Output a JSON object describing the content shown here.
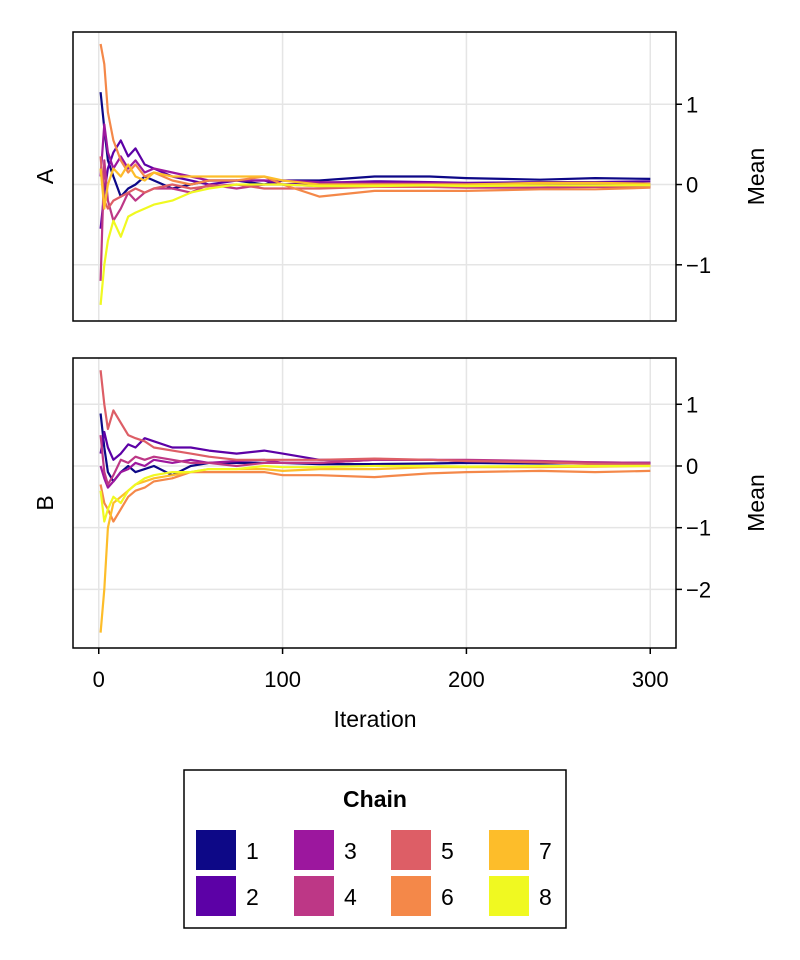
{
  "chart_data": {
    "type": "line",
    "xlabel": "Iteration",
    "xlim": [
      -14,
      314
    ],
    "xticks": [
      0,
      100,
      200,
      300
    ],
    "grid": true,
    "legend": {
      "title": "Chain",
      "position": "bottom-center",
      "entries": [
        {
          "label": "1",
          "color": "#0d0887"
        },
        {
          "label": "2",
          "color": "#5c01a6"
        },
        {
          "label": "3",
          "color": "#9c179e"
        },
        {
          "label": "4",
          "color": "#bd3786"
        },
        {
          "label": "5",
          "color": "#dd5e66"
        },
        {
          "label": "6",
          "color": "#f48849"
        },
        {
          "label": "7",
          "color": "#fdbd2a"
        },
        {
          "label": "8",
          "color": "#f0f921"
        }
      ]
    },
    "panels": [
      {
        "title": "A",
        "ylabel": "Mean",
        "ylim": [
          -1.7,
          1.9
        ],
        "yticks": [
          -1,
          0,
          1
        ],
        "show_x_ticks": false,
        "series": [
          {
            "name": "1",
            "color": "#0d0887",
            "x": [
              1,
              3,
              5,
              8,
              12,
              16,
              20,
              25,
              30,
              40,
              50,
              60,
              75,
              90,
              100,
              120,
              150,
              180,
              200,
              240,
              270,
              300
            ],
            "y": [
              1.15,
              0.7,
              0.3,
              0.1,
              -0.15,
              -0.05,
              0.0,
              0.1,
              0.05,
              -0.05,
              0.0,
              0.05,
              0.05,
              0.0,
              0.05,
              0.05,
              0.1,
              0.1,
              0.08,
              0.06,
              0.08,
              0.07
            ]
          },
          {
            "name": "2",
            "color": "#5c01a6",
            "x": [
              1,
              3,
              5,
              8,
              12,
              16,
              20,
              25,
              30,
              40,
              50,
              60,
              75,
              90,
              100,
              120,
              150,
              180,
              200,
              240,
              270,
              300
            ],
            "y": [
              -0.55,
              -0.1,
              0.2,
              0.4,
              0.55,
              0.35,
              0.45,
              0.25,
              0.2,
              0.1,
              0.05,
              0.0,
              0.05,
              0.05,
              0.0,
              0.02,
              0.04,
              0.03,
              0.02,
              0.03,
              0.03,
              0.04
            ]
          },
          {
            "name": "3",
            "color": "#9c179e",
            "x": [
              1,
              3,
              5,
              8,
              12,
              16,
              20,
              25,
              30,
              40,
              50,
              60,
              75,
              90,
              100,
              120,
              150,
              180,
              200,
              240,
              270,
              300
            ],
            "y": [
              0.1,
              0.75,
              0.4,
              0.2,
              0.35,
              0.2,
              0.3,
              0.15,
              0.2,
              0.15,
              0.1,
              0.05,
              0.05,
              0.05,
              0.05,
              0.03,
              0.02,
              0.02,
              0.01,
              0.0,
              0.01,
              0.0
            ]
          },
          {
            "name": "4",
            "color": "#bd3786",
            "x": [
              1,
              3,
              5,
              8,
              12,
              16,
              20,
              25,
              30,
              40,
              50,
              60,
              75,
              90,
              100,
              120,
              150,
              180,
              200,
              240,
              270,
              300
            ],
            "y": [
              -1.2,
              0.3,
              -0.2,
              -0.45,
              -0.3,
              -0.1,
              -0.2,
              -0.1,
              -0.05,
              -0.05,
              -0.1,
              0.0,
              -0.05,
              0.0,
              0.0,
              -0.02,
              -0.03,
              -0.03,
              -0.04,
              -0.04,
              -0.03,
              -0.03
            ]
          },
          {
            "name": "5",
            "color": "#dd5e66",
            "x": [
              1,
              3,
              5,
              8,
              12,
              16,
              20,
              25,
              30,
              40,
              50,
              60,
              75,
              90,
              100,
              120,
              150,
              180,
              200,
              240,
              270,
              300
            ],
            "y": [
              0.35,
              -0.2,
              -0.3,
              -0.2,
              -0.15,
              -0.1,
              -0.05,
              -0.1,
              -0.05,
              0.0,
              -0.05,
              -0.02,
              0.0,
              -0.05,
              -0.05,
              -0.05,
              -0.03,
              -0.03,
              -0.02,
              -0.01,
              -0.02,
              -0.02
            ]
          },
          {
            "name": "6",
            "color": "#f48849",
            "x": [
              1,
              3,
              5,
              8,
              12,
              16,
              20,
              25,
              30,
              40,
              50,
              60,
              75,
              90,
              100,
              120,
              150,
              180,
              200,
              240,
              270,
              300
            ],
            "y": [
              1.75,
              1.5,
              0.9,
              0.55,
              0.3,
              0.15,
              0.25,
              0.1,
              0.15,
              0.05,
              0.0,
              0.05,
              0.05,
              0.1,
              0.0,
              -0.15,
              -0.08,
              -0.08,
              -0.08,
              -0.06,
              -0.06,
              -0.04
            ]
          },
          {
            "name": "7",
            "color": "#fdbd2a",
            "x": [
              1,
              3,
              5,
              8,
              12,
              16,
              20,
              25,
              30,
              40,
              50,
              60,
              75,
              90,
              100,
              120,
              150,
              180,
              200,
              240,
              270,
              300
            ],
            "y": [
              0.2,
              -0.3,
              0.0,
              0.2,
              0.1,
              0.25,
              0.1,
              0.05,
              0.15,
              0.1,
              0.1,
              0.1,
              0.1,
              0.1,
              0.05,
              0.0,
              0.0,
              0.0,
              0.0,
              0.02,
              0.02,
              0.01
            ]
          },
          {
            "name": "8",
            "color": "#f0f921",
            "x": [
              1,
              3,
              5,
              8,
              12,
              16,
              20,
              25,
              30,
              40,
              50,
              60,
              75,
              90,
              100,
              120,
              150,
              180,
              200,
              240,
              270,
              300
            ],
            "y": [
              -1.5,
              -1.0,
              -0.7,
              -0.45,
              -0.65,
              -0.4,
              -0.35,
              -0.3,
              -0.25,
              -0.2,
              -0.1,
              -0.05,
              0.0,
              0.0,
              0.0,
              -0.02,
              -0.02,
              -0.01,
              -0.02,
              -0.01,
              -0.01,
              -0.01
            ]
          }
        ]
      },
      {
        "title": "B",
        "ylabel": "Mean",
        "ylim": [
          -2.95,
          1.75
        ],
        "yticks": [
          -2,
          -1,
          0,
          1
        ],
        "show_x_ticks": true,
        "series": [
          {
            "name": "1",
            "color": "#0d0887",
            "x": [
              1,
              3,
              5,
              8,
              12,
              16,
              20,
              25,
              30,
              40,
              50,
              60,
              75,
              90,
              100,
              120,
              150,
              180,
              200,
              240,
              270,
              300
            ],
            "y": [
              0.85,
              0.3,
              -0.1,
              -0.25,
              -0.1,
              0.0,
              -0.1,
              -0.05,
              0.0,
              -0.15,
              0.0,
              0.05,
              0.05,
              0.05,
              0.05,
              0.03,
              0.03,
              0.04,
              0.05,
              0.04,
              0.05,
              0.05
            ]
          },
          {
            "name": "2",
            "color": "#5c01a6",
            "x": [
              1,
              3,
              5,
              8,
              12,
              16,
              20,
              25,
              30,
              40,
              50,
              60,
              75,
              90,
              100,
              120,
              150,
              180,
              200,
              240,
              270,
              300
            ],
            "y": [
              0.2,
              0.55,
              0.3,
              0.1,
              0.2,
              0.35,
              0.3,
              0.45,
              0.4,
              0.3,
              0.3,
              0.25,
              0.2,
              0.25,
              0.2,
              0.1,
              0.1,
              0.1,
              0.08,
              0.06,
              0.06,
              0.05
            ]
          },
          {
            "name": "3",
            "color": "#9c179e",
            "x": [
              1,
              3,
              5,
              8,
              12,
              16,
              20,
              25,
              30,
              40,
              50,
              60,
              75,
              90,
              100,
              120,
              150,
              180,
              200,
              240,
              270,
              300
            ],
            "y": [
              0.0,
              -0.2,
              -0.35,
              -0.25,
              -0.1,
              -0.05,
              0.05,
              0.0,
              0.1,
              0.05,
              0.1,
              0.05,
              0.08,
              0.1,
              0.05,
              0.05,
              0.1,
              0.1,
              0.08,
              0.06,
              0.05,
              0.04
            ]
          },
          {
            "name": "4",
            "color": "#bd3786",
            "x": [
              1,
              3,
              5,
              8,
              12,
              16,
              20,
              25,
              30,
              40,
              50,
              60,
              75,
              90,
              100,
              120,
              150,
              180,
              200,
              240,
              270,
              300
            ],
            "y": [
              0.5,
              -0.1,
              -0.3,
              -0.15,
              0.1,
              0.05,
              0.15,
              0.1,
              0.15,
              0.1,
              0.05,
              0.05,
              0.0,
              0.05,
              0.05,
              0.05,
              0.1,
              0.1,
              0.1,
              0.08,
              0.06,
              0.05
            ]
          },
          {
            "name": "5",
            "color": "#dd5e66",
            "x": [
              1,
              3,
              5,
              8,
              12,
              16,
              20,
              25,
              30,
              40,
              50,
              60,
              75,
              90,
              100,
              120,
              150,
              180,
              200,
              240,
              270,
              300
            ],
            "y": [
              1.55,
              1.0,
              0.6,
              0.9,
              0.7,
              0.5,
              0.45,
              0.4,
              0.3,
              0.25,
              0.2,
              0.15,
              0.1,
              0.1,
              0.1,
              0.1,
              0.12,
              0.1,
              0.08,
              0.06,
              0.03,
              0.02
            ]
          },
          {
            "name": "6",
            "color": "#f48849",
            "x": [
              1,
              3,
              5,
              8,
              12,
              16,
              20,
              25,
              30,
              40,
              50,
              60,
              75,
              90,
              100,
              120,
              150,
              180,
              200,
              240,
              270,
              300
            ],
            "y": [
              -0.3,
              -0.6,
              -0.7,
              -0.9,
              -0.7,
              -0.5,
              -0.4,
              -0.35,
              -0.25,
              -0.2,
              -0.1,
              -0.1,
              -0.1,
              -0.1,
              -0.15,
              -0.15,
              -0.18,
              -0.12,
              -0.1,
              -0.08,
              -0.1,
              -0.08
            ]
          },
          {
            "name": "7",
            "color": "#fdbd2a",
            "x": [
              1,
              3,
              5,
              8,
              12,
              16,
              20,
              25,
              30,
              40,
              50,
              60,
              75,
              90,
              100,
              120,
              150,
              180,
              200,
              240,
              270,
              300
            ],
            "y": [
              -2.7,
              -2.0,
              -1.0,
              -0.6,
              -0.5,
              -0.4,
              -0.3,
              -0.25,
              -0.2,
              -0.15,
              -0.1,
              -0.05,
              -0.05,
              -0.05,
              -0.08,
              -0.05,
              -0.05,
              -0.02,
              -0.02,
              -0.02,
              -0.01,
              0.0
            ]
          },
          {
            "name": "8",
            "color": "#f0f921",
            "x": [
              1,
              3,
              5,
              8,
              12,
              16,
              20,
              25,
              30,
              40,
              50,
              60,
              75,
              90,
              100,
              120,
              150,
              180,
              200,
              240,
              270,
              300
            ],
            "y": [
              -0.4,
              -0.9,
              -0.7,
              -0.5,
              -0.6,
              -0.4,
              -0.3,
              -0.2,
              -0.15,
              -0.1,
              -0.1,
              -0.05,
              -0.05,
              0.0,
              -0.02,
              -0.02,
              0.0,
              0.0,
              -0.01,
              0.0,
              0.0,
              0.0
            ]
          }
        ]
      }
    ]
  }
}
